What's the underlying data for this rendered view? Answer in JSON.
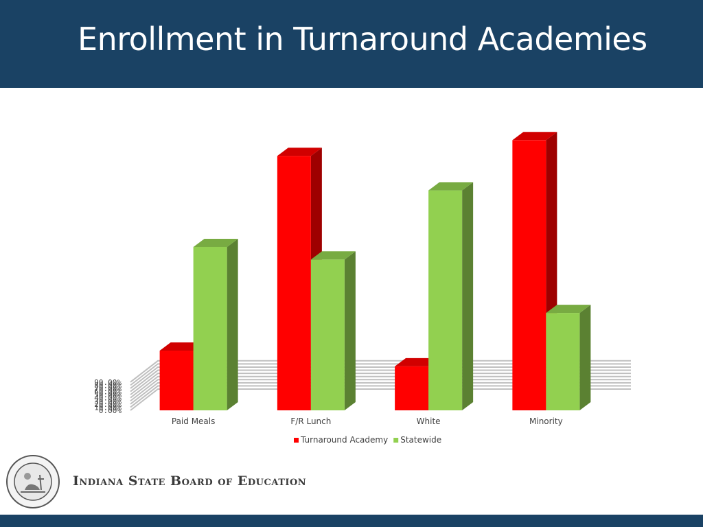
{
  "slide": {
    "title": "Enrollment in Turnaround Academies",
    "organization": "Indiana State Board of Education",
    "seal_text": "SEAL OF THE STATE OF INDIANA",
    "seal_year": "1816"
  },
  "colors": {
    "header": "#1a4264",
    "turnaround": "#ff0000",
    "statewide": "#92d050"
  },
  "chart_data": {
    "type": "bar",
    "title": "",
    "xlabel": "",
    "ylabel": "",
    "ylim": [
      0,
      90
    ],
    "yticks": [
      "0.00%",
      "10.00%",
      "20.00%",
      "30.00%",
      "40.00%",
      "50.00%",
      "60.00%",
      "70.00%",
      "80.00%",
      "90.00%"
    ],
    "categories": [
      "Paid Meals",
      "F/R Lunch",
      "White",
      "Minority"
    ],
    "series": [
      {
        "name": "Turnaround Academy",
        "color": "#ff0000",
        "values": [
          19,
          81,
          14,
          86
        ]
      },
      {
        "name": "Statewide",
        "color": "#92d050",
        "values": [
          52,
          48,
          70,
          31
        ]
      }
    ],
    "legend_position": "bottom",
    "grid": true
  }
}
